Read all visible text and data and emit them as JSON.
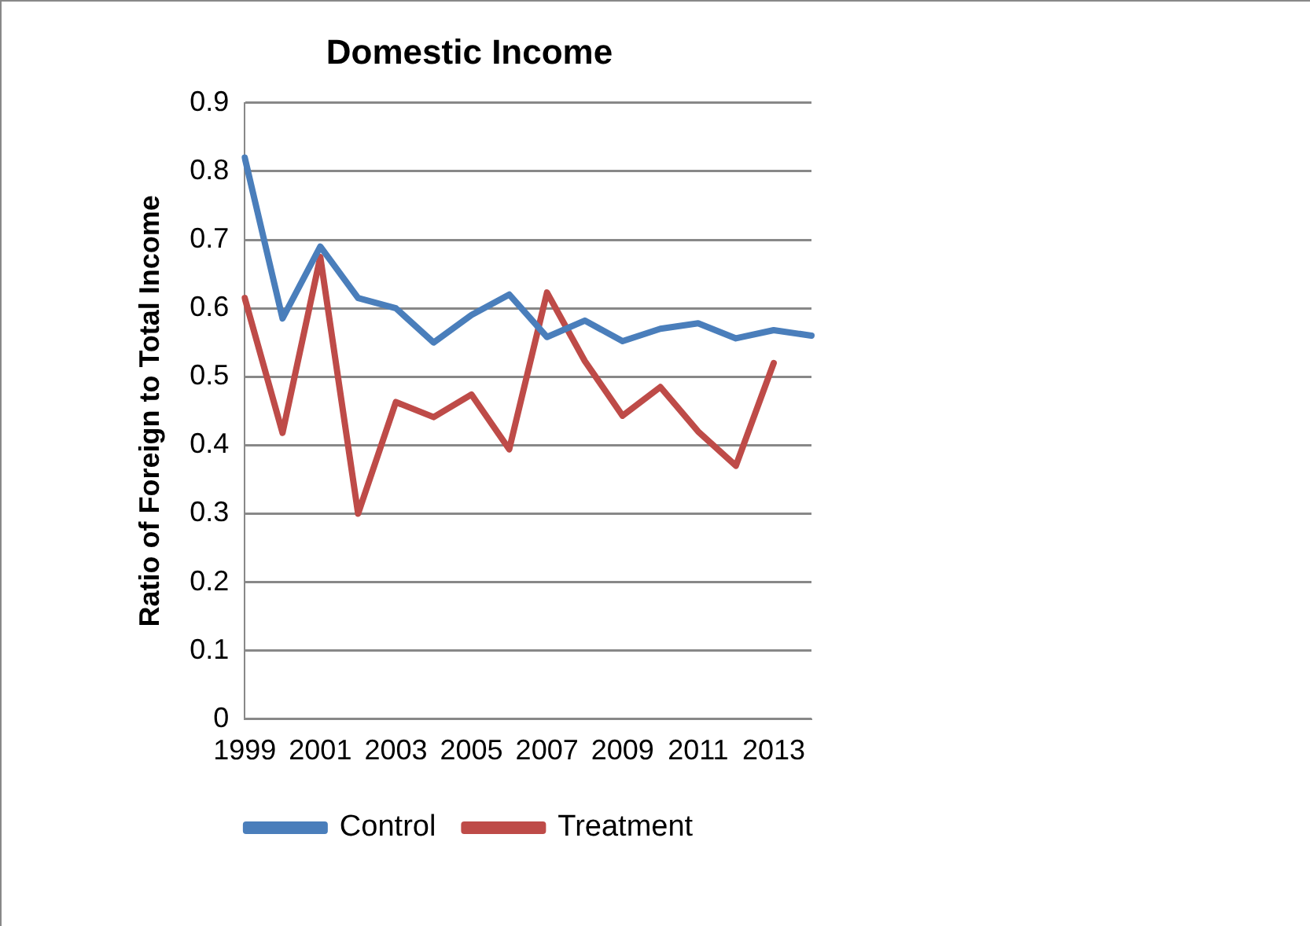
{
  "chart_data": {
    "type": "line",
    "title": "Domestic Income",
    "ylabel": "Ratio of Foreign to Total Income",
    "categories": [
      "1999",
      null,
      "2001",
      null,
      "2003",
      null,
      "2005",
      null,
      "2007",
      null,
      "2009",
      null,
      "2011",
      null,
      "2013",
      null
    ],
    "series": [
      {
        "name": "Control",
        "color": "#4a7ebb",
        "values": [
          0.82,
          0.585,
          0.69,
          0.615,
          0.6,
          0.55,
          0.59,
          0.62,
          0.558,
          0.582,
          0.552,
          0.57,
          0.578,
          0.556,
          0.568,
          0.56
        ]
      },
      {
        "name": "Treatment",
        "color": "#be4b48",
        "values": [
          0.615,
          0.418,
          0.675,
          0.3,
          0.463,
          0.441,
          0.474,
          0.394,
          0.623,
          0.523,
          0.443,
          0.485,
          0.42,
          0.37,
          0.52,
          null
        ]
      }
    ],
    "ylim": [
      0,
      0.9
    ],
    "yticks": [
      0,
      0.1,
      0.2,
      0.3,
      0.4,
      0.5,
      0.6,
      0.7,
      0.8,
      0.9
    ],
    "grid": "y",
    "legend": "bottom",
    "marker": "none",
    "line_style": "solid"
  }
}
